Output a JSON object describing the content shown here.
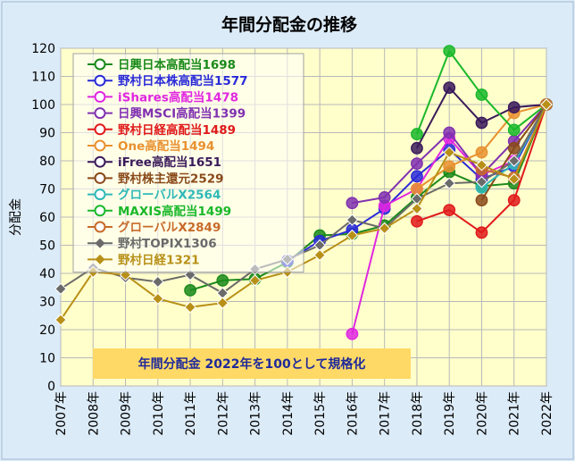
{
  "chart_data": {
    "type": "line",
    "title": "年間分配金の推移",
    "ylabel": "分配金",
    "xlabel": "",
    "ylim": [
      0,
      120
    ],
    "yticks": [
      0,
      10,
      20,
      30,
      40,
      50,
      60,
      70,
      80,
      90,
      100,
      110,
      120
    ],
    "grid": true,
    "legend_position": "top-left",
    "annotation": "年間分配金 2022年を100として規格化",
    "categories": [
      "2007年",
      "2008年",
      "2009年",
      "2010年",
      "2011年",
      "2012年",
      "2013年",
      "2014年",
      "2015年",
      "2016年",
      "2017年",
      "2018年",
      "2019年",
      "2020年",
      "2021年",
      "2022年"
    ],
    "series": [
      {
        "name": "日興日本高配当1698",
        "color": "#1a8a1a",
        "marker": "circle",
        "values": [
          null,
          null,
          null,
          null,
          34,
          37.5,
          38,
          44,
          53.5,
          54,
          57,
          67,
          76,
          71,
          72,
          100
        ]
      },
      {
        "name": "野村日本株高配当1577",
        "color": "#2a2ad8",
        "marker": "circle",
        "values": [
          null,
          null,
          null,
          null,
          null,
          null,
          null,
          44.5,
          51.5,
          55.5,
          63,
          74.5,
          84,
          73.5,
          78,
          100
        ]
      },
      {
        "name": "iShares高配当1478",
        "color": "#e026e0",
        "marker": "circle",
        "values": [
          null,
          null,
          null,
          null,
          null,
          null,
          null,
          null,
          null,
          18.5,
          64,
          70,
          88,
          75,
          80,
          100
        ]
      },
      {
        "name": "日興MSCI高配当1399",
        "color": "#8030b0",
        "marker": "circle",
        "values": [
          null,
          null,
          null,
          null,
          null,
          null,
          null,
          null,
          null,
          65,
          67,
          79,
          90,
          75,
          87,
          100
        ]
      },
      {
        "name": "野村日経高配当1489",
        "color": "#e01a1a",
        "marker": "circle",
        "values": [
          null,
          null,
          null,
          null,
          null,
          null,
          null,
          null,
          null,
          null,
          null,
          58.5,
          62.5,
          54.5,
          66,
          100
        ]
      },
      {
        "name": "One高配当1494",
        "color": "#e89030",
        "marker": "circle",
        "values": [
          null,
          null,
          null,
          null,
          null,
          null,
          null,
          null,
          null,
          null,
          null,
          70,
          78,
          83,
          97,
          100
        ]
      },
      {
        "name": "iFree高配当1651",
        "color": "#3a1a5a",
        "marker": "circle",
        "values": [
          null,
          null,
          null,
          null,
          null,
          null,
          null,
          null,
          null,
          null,
          null,
          84.5,
          106,
          93.5,
          99,
          100
        ]
      },
      {
        "name": "野村株主還元2529",
        "color": "#8a4a1a",
        "marker": "circle",
        "values": [
          null,
          null,
          null,
          null,
          null,
          null,
          null,
          null,
          null,
          null,
          null,
          null,
          null,
          66,
          84.5,
          100
        ]
      },
      {
        "name": "グローバルX2564",
        "color": "#30b8b8",
        "marker": "circle",
        "values": [
          null,
          null,
          null,
          null,
          null,
          null,
          null,
          null,
          null,
          null,
          null,
          null,
          null,
          70.5,
          79,
          100
        ]
      },
      {
        "name": "MAXIS高配当1499",
        "color": "#1ab82a",
        "marker": "circle",
        "values": [
          null,
          null,
          null,
          null,
          null,
          null,
          null,
          null,
          null,
          null,
          null,
          89.5,
          119,
          103.5,
          91,
          100
        ]
      },
      {
        "name": "グローバルX2849",
        "color": "#c86a2a",
        "marker": "circle",
        "values": [
          null,
          null,
          null,
          null,
          null,
          null,
          null,
          null,
          null,
          null,
          null,
          null,
          null,
          77,
          74,
          100
        ]
      },
      {
        "name": "野村TOPIX1306",
        "color": "#6a6a6a",
        "marker": "diamond",
        "values": [
          34.5,
          42,
          38.5,
          37,
          39.5,
          33,
          41.5,
          45,
          50,
          59,
          56,
          66.5,
          72,
          72.5,
          80,
          100
        ]
      },
      {
        "name": "野村日経1321",
        "color": "#b89018",
        "marker": "diamond",
        "values": [
          23.5,
          40.5,
          39.5,
          31,
          28,
          29.5,
          37.5,
          40.5,
          46.5,
          53.5,
          56,
          63,
          83,
          78.5,
          73.5,
          100
        ]
      }
    ]
  }
}
